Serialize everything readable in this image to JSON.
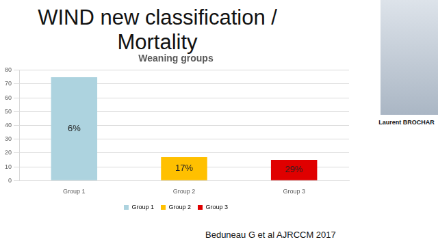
{
  "slide": {
    "title": "WIND new classification / Mortality",
    "citation": "Beduneau G et al AJRCCM 2017",
    "speaker": "Laurent BROCHAR"
  },
  "chart_data": {
    "type": "bar",
    "title": "Weaning groups",
    "categories": [
      "Group 1",
      "Group 2",
      "Group 3"
    ],
    "values": [
      75,
      17,
      15
    ],
    "colors": [
      "#add3df",
      "#ffc000",
      "#e00000"
    ],
    "bar_labels": [
      "6%",
      "17%",
      "29%"
    ],
    "ylim": [
      0,
      80
    ],
    "yticks": [
      0,
      10,
      20,
      30,
      40,
      50,
      60,
      70,
      80
    ],
    "grid": true,
    "legend": "bottom"
  }
}
